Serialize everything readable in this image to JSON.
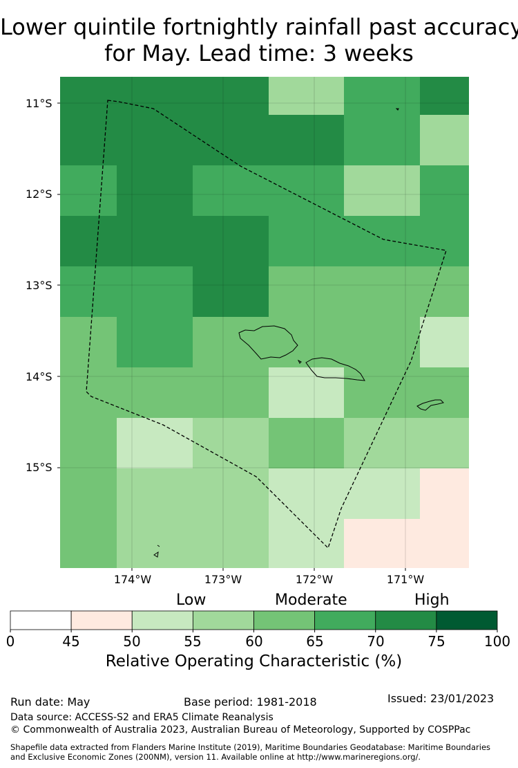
{
  "title": {
    "line1": "Lower quintile fortnightly rainfall past accuracy",
    "line2": "for May. Lead time: 3 weeks"
  },
  "map": {
    "lat_labels": [
      "11°S",
      "12°S",
      "13°S",
      "14°S",
      "15°S"
    ],
    "lon_labels": [
      "174°W",
      "173°W",
      "172°W",
      "171°W"
    ],
    "grid_values": [
      [
        70,
        70,
        70,
        55,
        65,
        70
      ],
      [
        70,
        70,
        70,
        70,
        65,
        55
      ],
      [
        65,
        70,
        65,
        65,
        55,
        65
      ],
      [
        70,
        70,
        70,
        65,
        65,
        65
      ],
      [
        65,
        65,
        70,
        60,
        60,
        60
      ],
      [
        60,
        65,
        60,
        60,
        60,
        50
      ],
      [
        60,
        60,
        60,
        50,
        60,
        60
      ],
      [
        60,
        50,
        55,
        60,
        55,
        55
      ],
      [
        60,
        55,
        55,
        50,
        50,
        45
      ],
      [
        60,
        55,
        55,
        50,
        45,
        45
      ]
    ]
  },
  "colorbar": {
    "category_labels": [
      "Low",
      "Moderate",
      "High"
    ],
    "tick_labels": [
      "0",
      "45",
      "50",
      "55",
      "60",
      "65",
      "70",
      "75",
      "100"
    ],
    "colors": [
      "#ffffff",
      "#feeae0",
      "#c7e9c0",
      "#a1d99b",
      "#74c476",
      "#41ab5d",
      "#238b45",
      "#005a32"
    ],
    "caption": "Relative Operating Characteristic (%)"
  },
  "footer": {
    "run_date": "Run date: May",
    "base_period": "Base period: 1981-2018",
    "issued": "Issued: 23/01/2023",
    "data_source": "Data source: ACCESS-S2 and ERA5 Climate Reanalysis",
    "copyright": "© Commonwealth of Australia 2023, Australian Bureau of Meteorology, Supported by COSPPac",
    "shapefile_line1": "Shapefile data extracted from Flanders Marine Institute (2019), Maritime Boundaries Geodatabase: Maritime Boundaries",
    "shapefile_line2": "and Exclusive Economic Zones (200NM), version 11. Available online at http://www.marineregions.org/."
  }
}
